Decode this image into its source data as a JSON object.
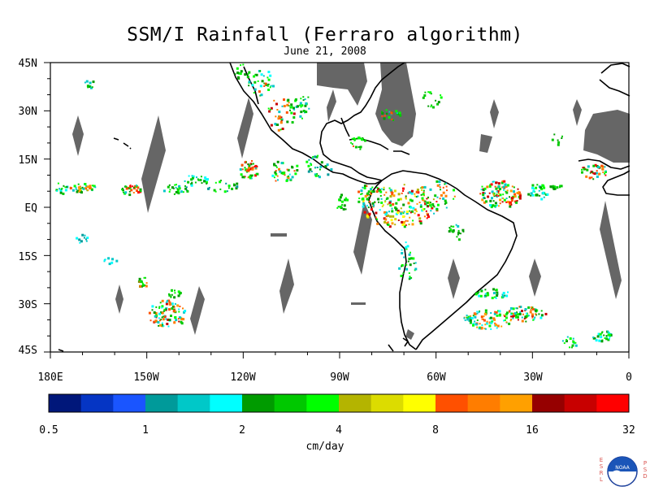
{
  "title": "SSM/I Rainfall (Ferraro algorithm)",
  "subtitle": "June 21, 2008",
  "lat_labels": [
    "45N",
    "30N",
    "15N",
    "EQ",
    "15S",
    "30S",
    "45S"
  ],
  "lon_labels": [
    "180E",
    "150W",
    "120W",
    "90W",
    "60W",
    "30W",
    "0"
  ],
  "colorbar": {
    "tick_labels": [
      "0.5",
      "1",
      "2",
      "4",
      "8",
      "16",
      "32"
    ],
    "units": "cm/day",
    "colors": [
      "#00177a",
      "#0535c4",
      "#1a55ff",
      "#009a9a",
      "#00c8c8",
      "#00ffff",
      "#009b00",
      "#00c800",
      "#00ff00",
      "#b4b400",
      "#dcdc00",
      "#ffff00",
      "#ff5000",
      "#ff7d00",
      "#ffa000",
      "#960000",
      "#c80000",
      "#ff0000"
    ]
  },
  "missing_color": "#666666",
  "logo": {
    "left_letters": "ESRL",
    "right_letters": "PSD",
    "center_text": "NOAA"
  }
}
